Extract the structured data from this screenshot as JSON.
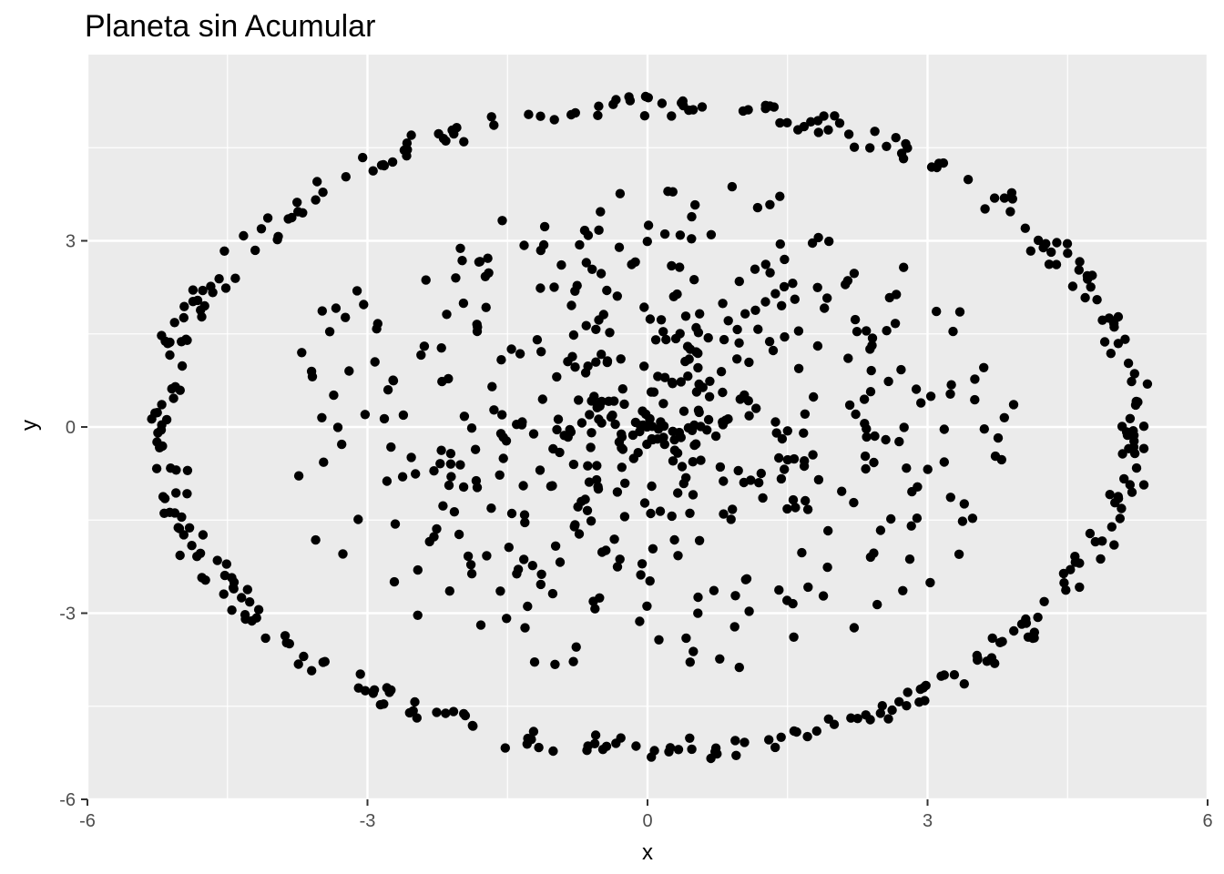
{
  "chart_data": {
    "type": "scatter",
    "title": "Planeta sin Acumular",
    "xlabel": "x",
    "ylabel": "y",
    "xlim": [
      -6,
      6
    ],
    "ylim": [
      -6,
      6
    ],
    "x_ticks": [
      -6,
      -3,
      0,
      3,
      6
    ],
    "y_ticks": [
      -6,
      -3,
      0,
      3
    ],
    "x_tick_labels": [
      "-6",
      "-3",
      "0",
      "3",
      "6"
    ],
    "y_tick_labels": [
      "-6",
      "-3",
      "0",
      "3"
    ],
    "grid": true,
    "legend": "none",
    "colors": {
      "panel": "#ebebeb",
      "grid": "#ffffff",
      "point": "#000000",
      "tick": "#333333"
    },
    "ring": {
      "description_free_params": true,
      "rx": 5.2,
      "ry": 5.2,
      "count": 360,
      "jitter": 0.18
    },
    "inner": {
      "count": 520,
      "max_radius": 4.0
    }
  }
}
